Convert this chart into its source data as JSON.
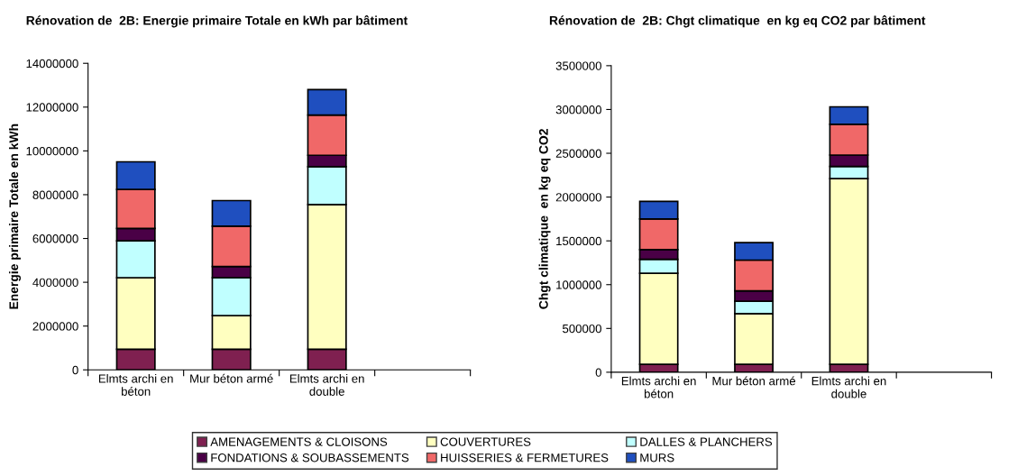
{
  "chart_data": [
    {
      "type": "bar",
      "stacked": true,
      "title": "Rénovation de  2B: Energie primaire Totale en kWh par bâtiment",
      "ylabel": "Energie primaire Totale en kWh",
      "categories": [
        "Elmts archi en\nbéton",
        "Mur béton armé",
        "Elmts archi en\ndouble",
        null
      ],
      "series": [
        {
          "name": "AMENAGEMENTS & CLOISONS",
          "color": "#7f2050",
          "values": [
            940000,
            940000,
            940000,
            null
          ]
        },
        {
          "name": "COUVERTURES",
          "color": "#ffffc0",
          "values": [
            3270000,
            1540000,
            6610000,
            null
          ]
        },
        {
          "name": "DALLES & PLANCHERS",
          "color": "#c0ffff",
          "values": [
            1680000,
            1730000,
            1730000,
            null
          ]
        },
        {
          "name": "FONDATIONS & SOUBASSEMENTS",
          "color": "#4a0046",
          "values": [
            570000,
            510000,
            520000,
            null
          ]
        },
        {
          "name": "HUISSERIES & FERMETURES",
          "color": "#f06868",
          "values": [
            1780000,
            1840000,
            1840000,
            null
          ]
        },
        {
          "name": "MURS",
          "color": "#1f4fbf",
          "values": [
            1260000,
            1170000,
            1160000,
            null
          ]
        }
      ],
      "ylim": [
        0,
        14000000
      ],
      "yticks": [
        0,
        2000000,
        4000000,
        6000000,
        8000000,
        10000000,
        12000000,
        14000000
      ],
      "grid": false,
      "legend": "bottom"
    },
    {
      "type": "bar",
      "stacked": true,
      "title": "Rénovation de  2B: Chgt climatique  en kg eq CO2 par bâtiment",
      "ylabel": "Chgt climatique  en kg eq CO2",
      "categories": [
        "Elmts archi en\nbéton",
        "Mur béton armé",
        "Elmts archi en\ndouble",
        null
      ],
      "series": [
        {
          "color": "#7f2050",
          "values": [
            90000,
            90000,
            90000,
            null
          ]
        },
        {
          "color": "#ffffc0",
          "values": [
            1040000,
            580000,
            2120000,
            null
          ]
        },
        {
          "color": "#c0ffff",
          "values": [
            160000,
            140000,
            140000,
            null
          ]
        },
        {
          "color": "#4a0046",
          "values": [
            110000,
            120000,
            130000,
            null
          ]
        },
        {
          "color": "#f06868",
          "values": [
            350000,
            350000,
            350000,
            null
          ]
        },
        {
          "color": "#1f4fbf",
          "values": [
            200000,
            200000,
            200000,
            null
          ]
        }
      ],
      "ylim": [
        0,
        3500000
      ],
      "yticks": [
        0,
        500000,
        1000000,
        1500000,
        2000000,
        2500000,
        3000000,
        3500000
      ],
      "grid": false
    }
  ]
}
